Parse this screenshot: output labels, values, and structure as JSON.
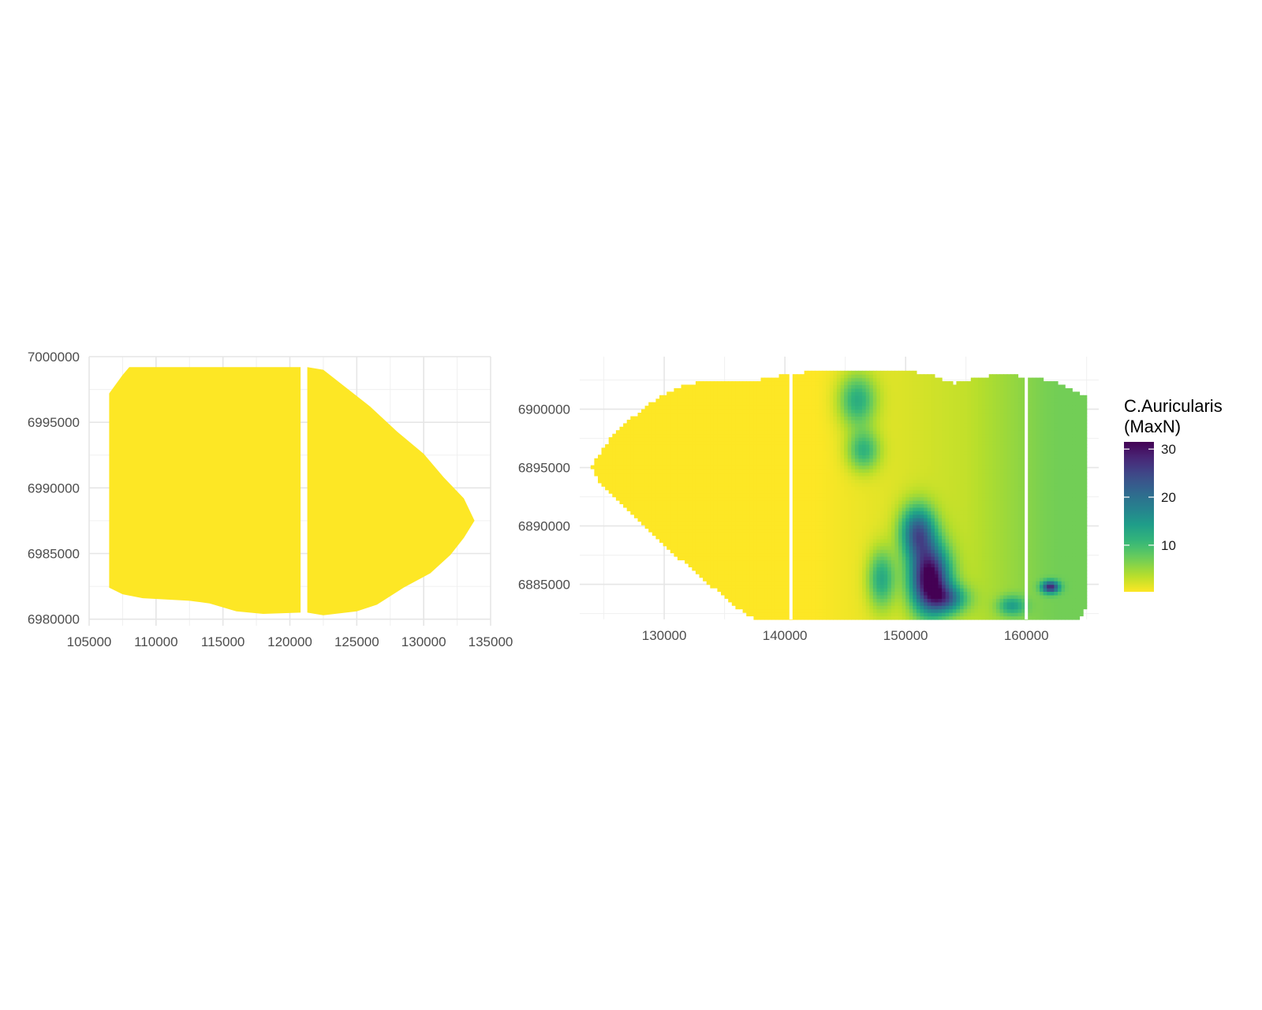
{
  "chart_data": [
    {
      "type": "heatmap",
      "title": "",
      "xlabel": "",
      "ylabel": "",
      "xlim": [
        105000,
        135000
      ],
      "ylim": [
        6979500,
        7000000
      ],
      "x_ticks": [
        105000,
        110000,
        115000,
        120000,
        125000,
        130000,
        135000
      ],
      "y_ticks": [
        6980000,
        6985000,
        6990000,
        6995000,
        7000000
      ],
      "grid": true,
      "fill_value": 0.3,
      "gap_x": 121000,
      "outline": [
        [
          106500,
          6998200
        ],
        [
          106500,
          6997200
        ],
        [
          107500,
          6998600
        ],
        [
          108000,
          6999200
        ],
        [
          112500,
          6999200
        ],
        [
          120800,
          6999200
        ],
        [
          120800,
          6980500
        ],
        [
          120800,
          6980500
        ]
      ],
      "outline_right": [
        [
          121300,
          6999200
        ],
        [
          122500,
          6999000
        ],
        [
          124000,
          6997800
        ],
        [
          126000,
          6996200
        ],
        [
          128000,
          6994300
        ],
        [
          130000,
          6992600
        ],
        [
          131500,
          6990800
        ],
        [
          133000,
          6989200
        ],
        [
          133800,
          6987500
        ],
        [
          133000,
          6986200
        ],
        [
          132000,
          6984900
        ],
        [
          130500,
          6983500
        ],
        [
          128500,
          6982400
        ],
        [
          126500,
          6981100
        ],
        [
          125000,
          6980600
        ],
        [
          122500,
          6980300
        ],
        [
          121300,
          6980500
        ]
      ],
      "outline_left": [
        [
          106500,
          6982400
        ],
        [
          107500,
          6981900
        ],
        [
          109000,
          6981600
        ],
        [
          112500,
          6981400
        ],
        [
          114000,
          6981200
        ],
        [
          116000,
          6980600
        ],
        [
          118000,
          6980400
        ],
        [
          120800,
          6980500
        ]
      ]
    },
    {
      "type": "heatmap",
      "title": "",
      "xlabel": "",
      "ylabel": "",
      "xlim": [
        123000,
        166000
      ],
      "ylim": [
        6882000,
        6904500
      ],
      "x_ticks": [
        130000,
        140000,
        150000,
        160000
      ],
      "y_ticks": [
        6885000,
        6890000,
        6895000,
        6900000
      ],
      "grid": true,
      "gap_x": [
        140500,
        160000
      ],
      "legend": {
        "title_line1": "C.Auricularis",
        "title_line2": "(MaxN)",
        "position": "right",
        "ticks": [
          10,
          20,
          30
        ],
        "range": [
          0.3,
          31.5
        ],
        "palette": "viridis-reversed"
      },
      "outline": [
        [
          124000,
          6895000
        ],
        [
          124500,
          6896000
        ],
        [
          125500,
          6897500
        ],
        [
          127000,
          6899000
        ],
        [
          128500,
          6900200
        ],
        [
          130000,
          6901300
        ],
        [
          132000,
          6902200
        ],
        [
          135000,
          6902500
        ],
        [
          137000,
          6902300
        ],
        [
          140000,
          6903000
        ],
        [
          143000,
          6903300
        ],
        [
          147000,
          6903400
        ],
        [
          150000,
          6903300
        ],
        [
          152000,
          6903000
        ],
        [
          154000,
          6902200
        ],
        [
          156000,
          6902700
        ],
        [
          158000,
          6903000
        ],
        [
          160500,
          6902700
        ],
        [
          162500,
          6902400
        ],
        [
          164000,
          6901500
        ],
        [
          165000,
          6901000
        ],
        [
          165000,
          6883200
        ],
        [
          164500,
          6882100
        ],
        [
          137500,
          6882100
        ],
        [
          136000,
          6883000
        ],
        [
          134000,
          6884800
        ],
        [
          131500,
          6887000
        ],
        [
          129000,
          6889300
        ],
        [
          126500,
          6891700
        ],
        [
          124500,
          6894000
        ]
      ],
      "hotspots": [
        {
          "x": 152000,
          "y": 6885500,
          "value": 31,
          "sx": 1600,
          "sy": 2800
        },
        {
          "x": 151000,
          "y": 6889500,
          "value": 20,
          "sx": 1400,
          "sy": 2200
        },
        {
          "x": 153500,
          "y": 6883800,
          "value": 14,
          "sx": 1600,
          "sy": 1200
        },
        {
          "x": 146000,
          "y": 6900800,
          "value": 11,
          "sx": 1500,
          "sy": 2200
        },
        {
          "x": 146500,
          "y": 6896500,
          "value": 10,
          "sx": 1300,
          "sy": 1700
        },
        {
          "x": 148000,
          "y": 6885500,
          "value": 11,
          "sx": 1100,
          "sy": 2400
        },
        {
          "x": 162000,
          "y": 6884800,
          "value": 22,
          "sx": 700,
          "sy": 500
        },
        {
          "x": 158800,
          "y": 6883200,
          "value": 9,
          "sx": 1100,
          "sy": 800
        }
      ]
    }
  ]
}
